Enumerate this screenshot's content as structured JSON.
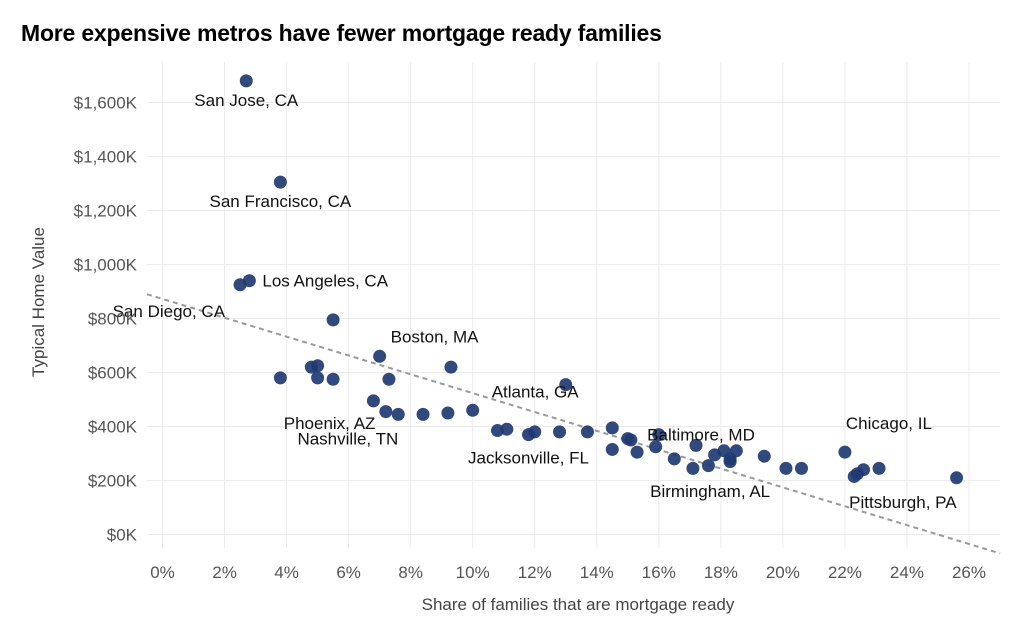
{
  "chart_data": {
    "type": "scatter",
    "title": "More expensive metros have fewer mortgage ready families",
    "xlabel": "Share of families that are mortgage ready",
    "ylabel": "Typical Home Value",
    "xlim": [
      -0.5,
      27
    ],
    "ylim": [
      -50,
      1750
    ],
    "x_ticks": [
      0,
      2,
      4,
      6,
      8,
      10,
      12,
      14,
      16,
      18,
      20,
      22,
      24,
      26
    ],
    "x_tick_labels": [
      "0%",
      "2%",
      "4%",
      "6%",
      "8%",
      "10%",
      "12%",
      "14%",
      "16%",
      "18%",
      "20%",
      "22%",
      "24%",
      "26%"
    ],
    "y_ticks": [
      0,
      200,
      400,
      600,
      800,
      1000,
      1200,
      1400,
      1600
    ],
    "y_tick_labels": [
      "$0K",
      "$200K",
      "$400K",
      "$600K",
      "$800K",
      "$1,000K",
      "$1,200K",
      "$1,400K",
      "$1,600K"
    ],
    "grid": true,
    "point_color": "#1f3a72",
    "trendline": {
      "style": "dashed",
      "color": "#999999",
      "x": [
        -0.5,
        27
      ],
      "y": [
        890,
        -70
      ]
    },
    "points": [
      {
        "x": 2.7,
        "y": 1680,
        "label": "San Jose, CA",
        "label_anchor": "middle"
      },
      {
        "x": 3.8,
        "y": 1305,
        "label": "San Francisco, CA",
        "label_anchor": "middle"
      },
      {
        "x": 2.8,
        "y": 940,
        "label": "Los Angeles, CA",
        "label_anchor": "start"
      },
      {
        "x": 2.5,
        "y": 925,
        "label": "San Diego, CA",
        "label_anchor": "end"
      },
      {
        "x": 5.5,
        "y": 795
      },
      {
        "x": 7.0,
        "y": 660,
        "label": "Boston, MA",
        "label_anchor": "start"
      },
      {
        "x": 9.3,
        "y": 620
      },
      {
        "x": 3.8,
        "y": 580
      },
      {
        "x": 4.8,
        "y": 620
      },
      {
        "x": 5.0,
        "y": 625
      },
      {
        "x": 5.0,
        "y": 580
      },
      {
        "x": 5.5,
        "y": 575
      },
      {
        "x": 7.3,
        "y": 575
      },
      {
        "x": 13.0,
        "y": 555
      },
      {
        "x": 6.8,
        "y": 495,
        "label": "Phoenix, AZ",
        "label_anchor": "end"
      },
      {
        "x": 7.2,
        "y": 455
      },
      {
        "x": 7.6,
        "y": 445,
        "label": "Nashville, TN",
        "label_anchor": "end"
      },
      {
        "x": 8.4,
        "y": 445
      },
      {
        "x": 9.2,
        "y": 450
      },
      {
        "x": 10.0,
        "y": 460,
        "label": "Atlanta, GA",
        "label_anchor": "start"
      },
      {
        "x": 10.8,
        "y": 385
      },
      {
        "x": 11.1,
        "y": 390
      },
      {
        "x": 11.8,
        "y": 370,
        "label": "Jacksonville, FL",
        "label_anchor": "middle"
      },
      {
        "x": 12.0,
        "y": 380
      },
      {
        "x": 12.8,
        "y": 380
      },
      {
        "x": 13.7,
        "y": 380
      },
      {
        "x": 14.5,
        "y": 395
      },
      {
        "x": 14.5,
        "y": 315
      },
      {
        "x": 15.1,
        "y": 350
      },
      {
        "x": 15.0,
        "y": 355
      },
      {
        "x": 15.3,
        "y": 305
      },
      {
        "x": 15.9,
        "y": 325
      },
      {
        "x": 16.0,
        "y": 370
      },
      {
        "x": 16.5,
        "y": 280
      },
      {
        "x": 17.2,
        "y": 330,
        "label": "Baltimore, MD",
        "label_anchor": "middle"
      },
      {
        "x": 17.1,
        "y": 245
      },
      {
        "x": 17.6,
        "y": 255
      },
      {
        "x": 17.8,
        "y": 295
      },
      {
        "x": 18.1,
        "y": 310
      },
      {
        "x": 18.3,
        "y": 270
      },
      {
        "x": 18.3,
        "y": 280,
        "label": "Birmingham, AL",
        "label_anchor": "middle"
      },
      {
        "x": 18.5,
        "y": 310
      },
      {
        "x": 19.4,
        "y": 290
      },
      {
        "x": 20.1,
        "y": 245
      },
      {
        "x": 20.6,
        "y": 245
      },
      {
        "x": 22.0,
        "y": 305,
        "label": "Chicago, IL",
        "label_anchor": "start"
      },
      {
        "x": 22.3,
        "y": 215
      },
      {
        "x": 22.4,
        "y": 225
      },
      {
        "x": 22.6,
        "y": 240
      },
      {
        "x": 23.1,
        "y": 245
      },
      {
        "x": 25.6,
        "y": 210,
        "label": "Pittsburgh, PA",
        "label_anchor": "end"
      }
    ]
  }
}
